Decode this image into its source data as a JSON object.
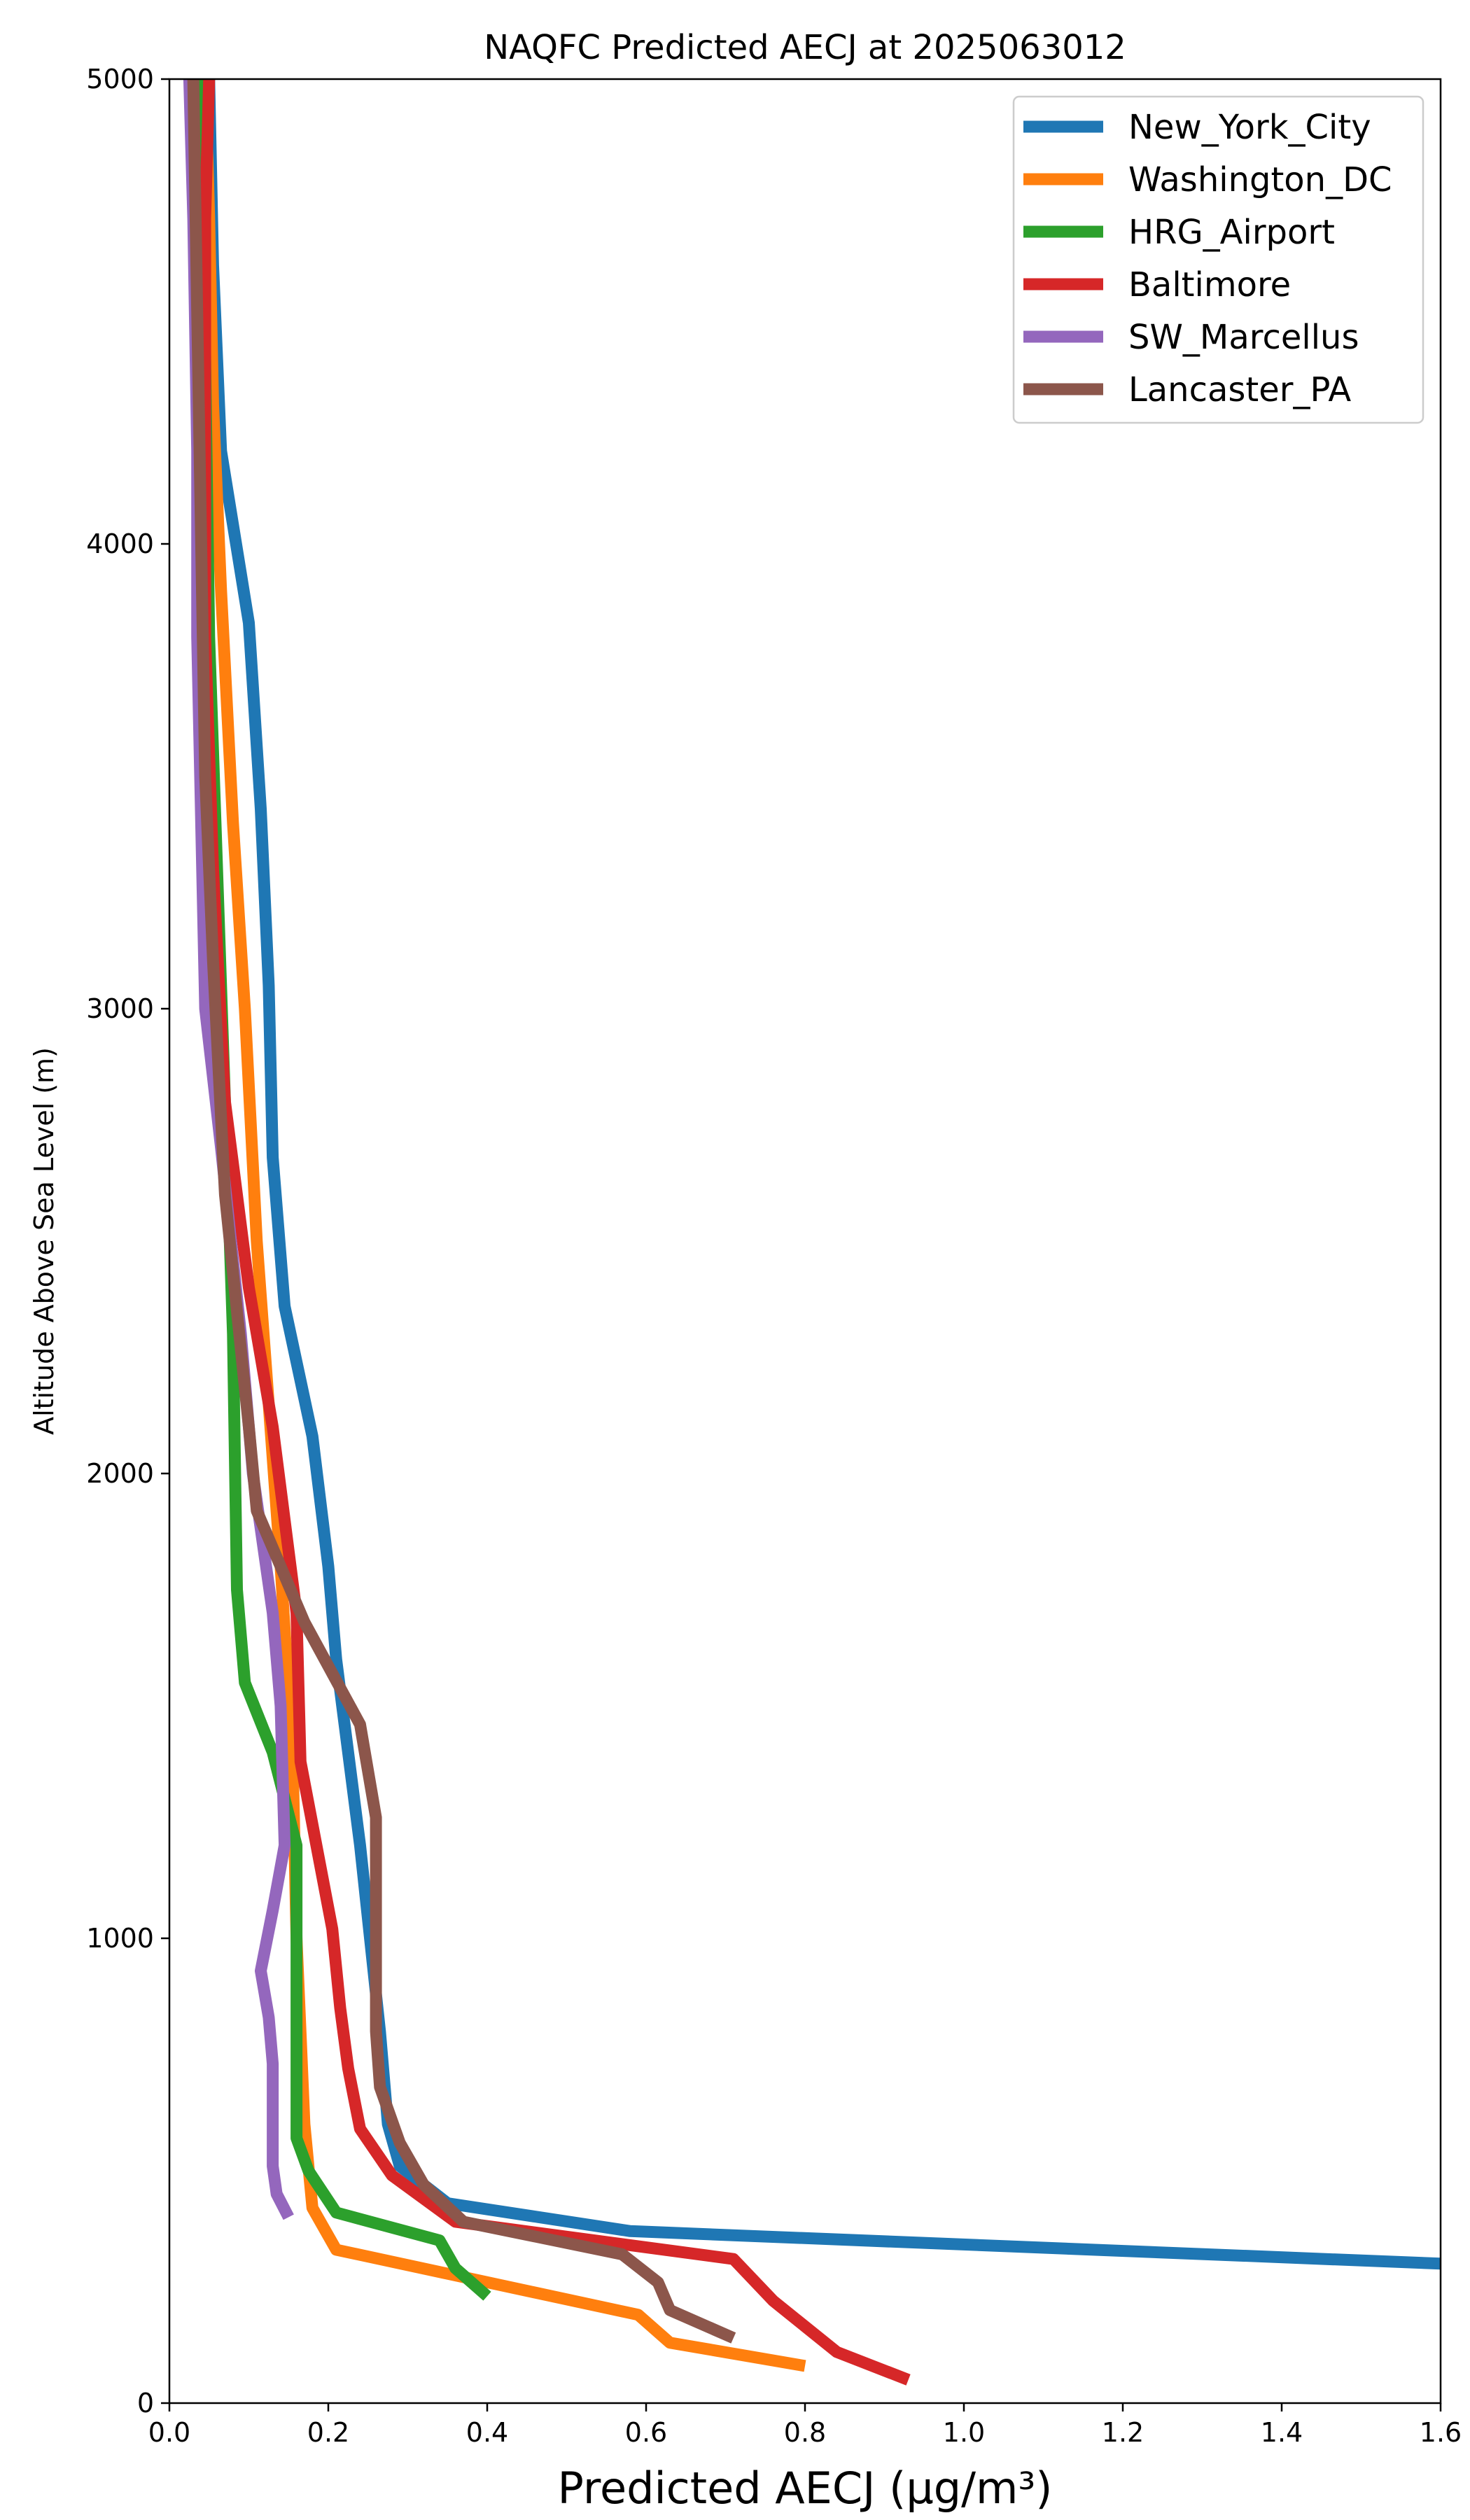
{
  "chart_data": {
    "type": "line",
    "title": "NAQFC Predicted AECJ at 2025063012",
    "xlabel": "Predicted AECJ (μg/m³)",
    "ylabel": "Altitude Above Sea Level (m)",
    "xlim": [
      0,
      1.6
    ],
    "ylim": [
      0,
      5000
    ],
    "xticks": [
      "0.0",
      "0.2",
      "0.4",
      "0.6",
      "0.8",
      "1.0",
      "1.2",
      "1.4",
      "1.6"
    ],
    "yticks": [
      "0",
      "1000",
      "2000",
      "3000",
      "4000",
      "5000"
    ],
    "grid": false,
    "legend_position": "upper right",
    "series": [
      {
        "name": "New_York_City",
        "color": "#1f77b4",
        "points": [
          [
            1.6,
            300
          ],
          [
            0.58,
            370
          ],
          [
            0.35,
            430
          ],
          [
            0.29,
            510
          ],
          [
            0.275,
            600
          ],
          [
            0.265,
            800
          ],
          [
            0.24,
            1200
          ],
          [
            0.21,
            1600
          ],
          [
            0.2,
            1800
          ],
          [
            0.18,
            2080
          ],
          [
            0.145,
            2360
          ],
          [
            0.13,
            2680
          ],
          [
            0.125,
            3050
          ],
          [
            0.115,
            3430
          ],
          [
            0.1,
            3830
          ],
          [
            0.065,
            4200
          ],
          [
            0.055,
            4600
          ],
          [
            0.05,
            5000
          ]
        ]
      },
      {
        "name": "Washington_DC",
        "color": "#ff7f0e",
        "points": [
          [
            0.8,
            80
          ],
          [
            0.63,
            130
          ],
          [
            0.59,
            190
          ],
          [
            0.21,
            330
          ],
          [
            0.18,
            420
          ],
          [
            0.17,
            600
          ],
          [
            0.16,
            1000
          ],
          [
            0.155,
            1400
          ],
          [
            0.14,
            1800
          ],
          [
            0.11,
            2500
          ],
          [
            0.095,
            3000
          ],
          [
            0.08,
            3400
          ],
          [
            0.065,
            3900
          ],
          [
            0.055,
            4300
          ],
          [
            0.05,
            4700
          ],
          [
            0.045,
            5000
          ]
        ]
      },
      {
        "name": "HRG_Airport",
        "color": "#2ca02c",
        "points": [
          [
            0.4,
            230
          ],
          [
            0.36,
            290
          ],
          [
            0.34,
            350
          ],
          [
            0.21,
            410
          ],
          [
            0.175,
            500
          ],
          [
            0.16,
            570
          ],
          [
            0.16,
            900
          ],
          [
            0.16,
            1200
          ],
          [
            0.13,
            1400
          ],
          [
            0.095,
            1550
          ],
          [
            0.085,
            1750
          ],
          [
            0.08,
            2300
          ],
          [
            0.07,
            2800
          ],
          [
            0.06,
            3300
          ],
          [
            0.05,
            3800
          ],
          [
            0.045,
            4400
          ],
          [
            0.04,
            5000
          ]
        ]
      },
      {
        "name": "Baltimore",
        "color": "#d62728",
        "points": [
          [
            0.93,
            50
          ],
          [
            0.84,
            110
          ],
          [
            0.76,
            220
          ],
          [
            0.71,
            310
          ],
          [
            0.36,
            390
          ],
          [
            0.28,
            490
          ],
          [
            0.24,
            590
          ],
          [
            0.225,
            720
          ],
          [
            0.215,
            850
          ],
          [
            0.205,
            1020
          ],
          [
            0.165,
            1380
          ],
          [
            0.16,
            1700
          ],
          [
            0.13,
            2100
          ],
          [
            0.1,
            2400
          ],
          [
            0.07,
            2800
          ],
          [
            0.055,
            3300
          ],
          [
            0.045,
            3800
          ],
          [
            0.045,
            4300
          ],
          [
            0.045,
            4700
          ],
          [
            0.05,
            5000
          ]
        ]
      },
      {
        "name": "SW_Marcellus",
        "color": "#9467bd",
        "points": [
          [
            0.15,
            400
          ],
          [
            0.135,
            450
          ],
          [
            0.13,
            510
          ],
          [
            0.13,
            600
          ],
          [
            0.13,
            730
          ],
          [
            0.125,
            830
          ],
          [
            0.115,
            930
          ],
          [
            0.13,
            1060
          ],
          [
            0.145,
            1200
          ],
          [
            0.14,
            1500
          ],
          [
            0.13,
            1700
          ],
          [
            0.105,
            2000
          ],
          [
            0.09,
            2300
          ],
          [
            0.065,
            2700
          ],
          [
            0.045,
            3000
          ],
          [
            0.04,
            3400
          ],
          [
            0.035,
            3800
          ],
          [
            0.035,
            4200
          ],
          [
            0.03,
            4700
          ],
          [
            0.025,
            5000
          ]
        ]
      },
      {
        "name": "Lancaster_PA",
        "color": "#8c564b",
        "points": [
          [
            0.71,
            140
          ],
          [
            0.63,
            200
          ],
          [
            0.615,
            260
          ],
          [
            0.57,
            320
          ],
          [
            0.37,
            390
          ],
          [
            0.32,
            470
          ],
          [
            0.29,
            560
          ],
          [
            0.265,
            680
          ],
          [
            0.26,
            800
          ],
          [
            0.26,
            1050
          ],
          [
            0.26,
            1260
          ],
          [
            0.24,
            1460
          ],
          [
            0.17,
            1680
          ],
          [
            0.14,
            1800
          ],
          [
            0.11,
            1920
          ],
          [
            0.1,
            2100
          ],
          [
            0.07,
            2600
          ],
          [
            0.055,
            3100
          ],
          [
            0.045,
            3500
          ],
          [
            0.04,
            4000
          ],
          [
            0.035,
            4500
          ],
          [
            0.03,
            5000
          ]
        ]
      }
    ]
  }
}
